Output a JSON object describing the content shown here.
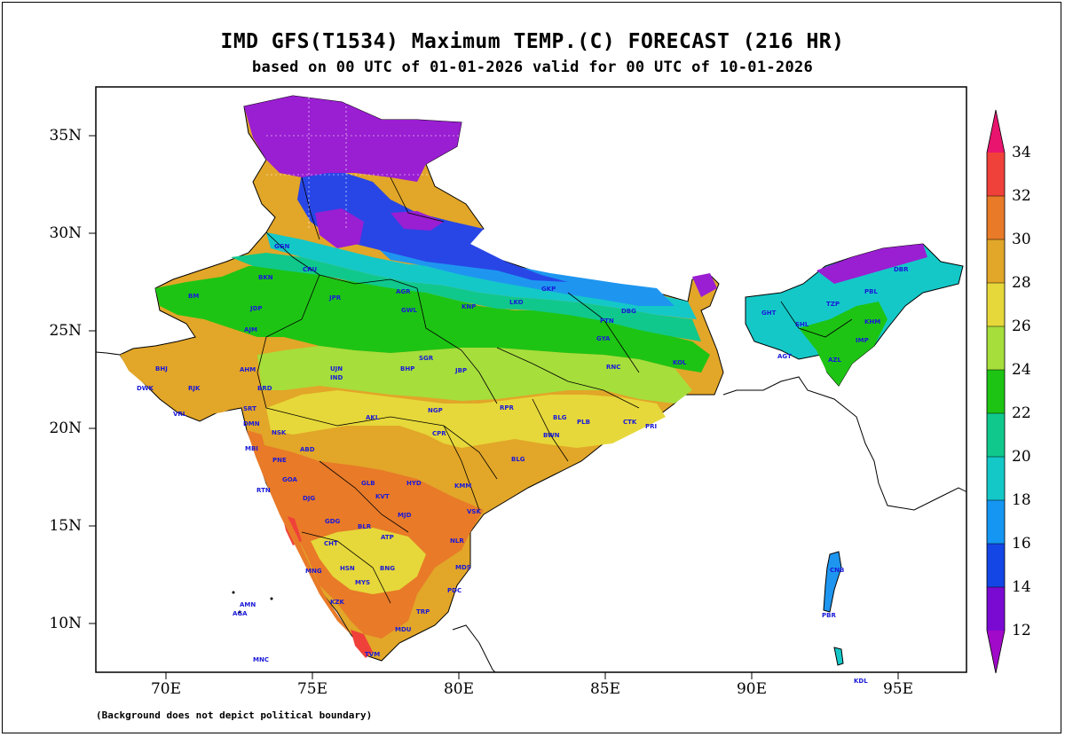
{
  "title": "IMD GFS(T1534) Maximum TEMP.(C) FORECAST (216 HR)",
  "subtitle": "based on 00 UTC of 01-01-2026 valid for 00 UTC of 10-01-2026",
  "footnote": "(Background does not depict political boundary)",
  "axes": {
    "lat_labels": [
      "35N",
      "30N",
      "25N",
      "20N",
      "15N",
      "10N"
    ],
    "lon_labels": [
      "70E",
      "75E",
      "80E",
      "85E",
      "90E",
      "95E"
    ]
  },
  "colorbar": {
    "levels": [
      "34",
      "32",
      "30",
      "28",
      "26",
      "24",
      "22",
      "20",
      "18",
      "16",
      "14",
      "12"
    ],
    "colors": [
      "#e8146e",
      "#f0403a",
      "#e87a28",
      "#e2a628",
      "#e6d83a",
      "#a6de3c",
      "#1ec414",
      "#10c88c",
      "#14c8c8",
      "#1496f2",
      "#1446e6",
      "#7a0ad2",
      "#a00ac8"
    ]
  },
  "region_colors": {
    "very_cold": "#9a1ed2",
    "cold": "#5a28dc",
    "cool_blue": "#2846e6",
    "light_blue": "#1e96f0",
    "cyan": "#14c8c8",
    "teal": "#10c88c",
    "green": "#1ec414",
    "light_green": "#a6de3c",
    "yellow": "#e6d83a",
    "gold": "#e2a628",
    "orange": "#e87a28",
    "red": "#f0403a"
  },
  "stations": [
    {
      "code": "GGN"
    },
    {
      "code": "BKN"
    },
    {
      "code": "CRU"
    },
    {
      "code": "BM"
    },
    {
      "code": "JDP"
    },
    {
      "code": "AJM"
    },
    {
      "code": "JPR"
    },
    {
      "code": "AGR"
    },
    {
      "code": "GWL"
    },
    {
      "code": "KNP"
    },
    {
      "code": "LKO"
    },
    {
      "code": "GKP"
    },
    {
      "code": "PTN"
    },
    {
      "code": "DBG"
    },
    {
      "code": "GYA"
    },
    {
      "code": "RNC"
    },
    {
      "code": "KOL"
    },
    {
      "code": "SGR"
    },
    {
      "code": "JBP"
    },
    {
      "code": "BHP"
    },
    {
      "code": "UJN"
    },
    {
      "code": "IND"
    },
    {
      "code": "AHM"
    },
    {
      "code": "BRD"
    },
    {
      "code": "RJK"
    },
    {
      "code": "BHJ"
    },
    {
      "code": "DWK"
    },
    {
      "code": "VRL"
    },
    {
      "code": "SRT"
    },
    {
      "code": "DMN"
    },
    {
      "code": "NSK"
    },
    {
      "code": "MBI"
    },
    {
      "code": "PNE"
    },
    {
      "code": "RTN"
    },
    {
      "code": "ABD"
    },
    {
      "code": "AKL"
    },
    {
      "code": "NGP"
    },
    {
      "code": "CPR"
    },
    {
      "code": "RPR"
    },
    {
      "code": "BLG"
    },
    {
      "code": "PLB"
    },
    {
      "code": "CTK"
    },
    {
      "code": "PRI"
    },
    {
      "code": "BWN"
    },
    {
      "code": "HYD"
    },
    {
      "code": "KMM"
    },
    {
      "code": "VSK"
    },
    {
      "code": "NLR"
    },
    {
      "code": "MDS"
    },
    {
      "code": "BNG"
    },
    {
      "code": "MYS"
    },
    {
      "code": "KZK"
    },
    {
      "code": "TVM"
    },
    {
      "code": "MDU"
    },
    {
      "code": "TRP"
    },
    {
      "code": "PDC"
    },
    {
      "code": "GOA"
    },
    {
      "code": "BLG"
    },
    {
      "code": "GLB"
    },
    {
      "code": "GDG"
    },
    {
      "code": "BLR"
    },
    {
      "code": "ATP"
    },
    {
      "code": "CHT"
    },
    {
      "code": "MNG"
    },
    {
      "code": "HSN"
    },
    {
      "code": "GHT"
    },
    {
      "code": "SHL"
    },
    {
      "code": "IMP"
    },
    {
      "code": "AZL"
    },
    {
      "code": "AGT"
    },
    {
      "code": "DBR"
    },
    {
      "code": "TZP"
    },
    {
      "code": "KHM"
    },
    {
      "code": "PBL"
    },
    {
      "code": "CNB"
    },
    {
      "code": "KDL"
    },
    {
      "code": "PBR"
    },
    {
      "code": "AMN"
    },
    {
      "code": "AGA"
    },
    {
      "code": "MNC"
    },
    {
      "code": "KVT"
    },
    {
      "code": "MJD"
    },
    {
      "code": "DJG"
    }
  ]
}
